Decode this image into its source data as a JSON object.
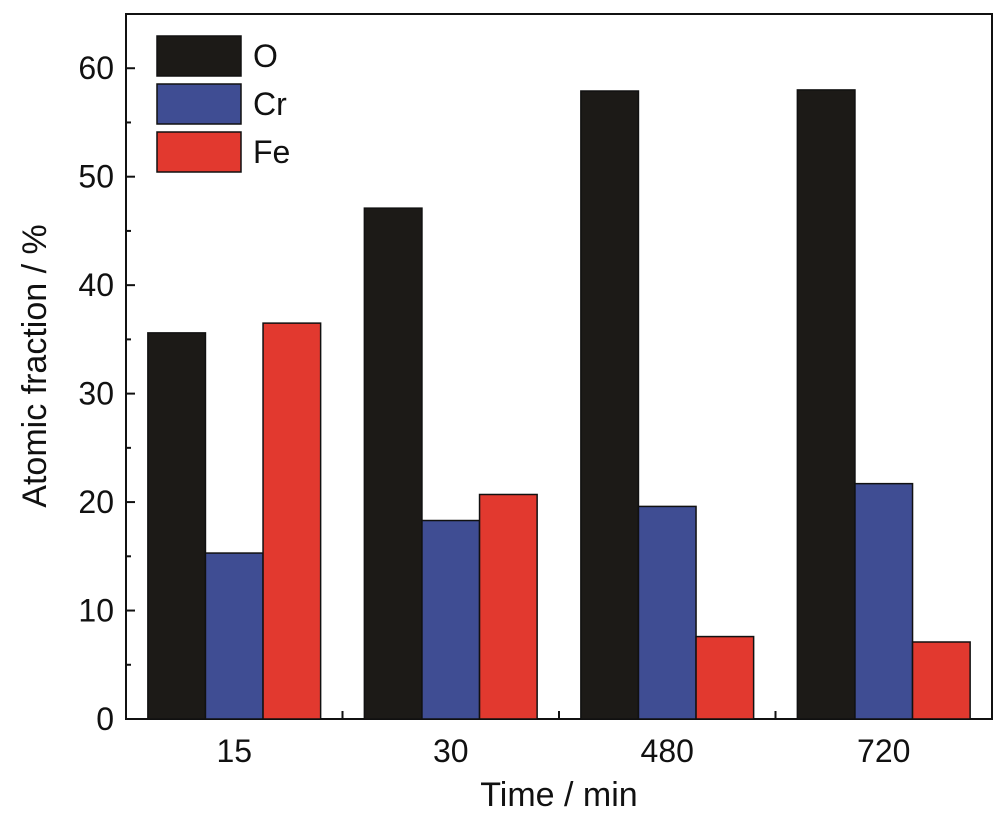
{
  "chart_data": {
    "type": "bar",
    "categories": [
      "15",
      "30",
      "480",
      "720"
    ],
    "series": [
      {
        "name": "O",
        "color": "#1c1a17",
        "values": [
          35.6,
          47.1,
          57.9,
          58.0
        ]
      },
      {
        "name": "Cr",
        "color": "#3f4d93",
        "values": [
          15.3,
          18.3,
          19.6,
          21.7
        ]
      },
      {
        "name": "Fe",
        "color": "#e2392f",
        "values": [
          36.5,
          20.7,
          7.6,
          7.1
        ]
      }
    ],
    "xlabel": "Time / min",
    "ylabel": "Atomic fraction / %",
    "ylim": [
      0,
      65
    ],
    "yticks": [
      "0",
      "10",
      "20",
      "30",
      "40",
      "50",
      "60"
    ],
    "grid": false,
    "legend_position": "top-left"
  }
}
